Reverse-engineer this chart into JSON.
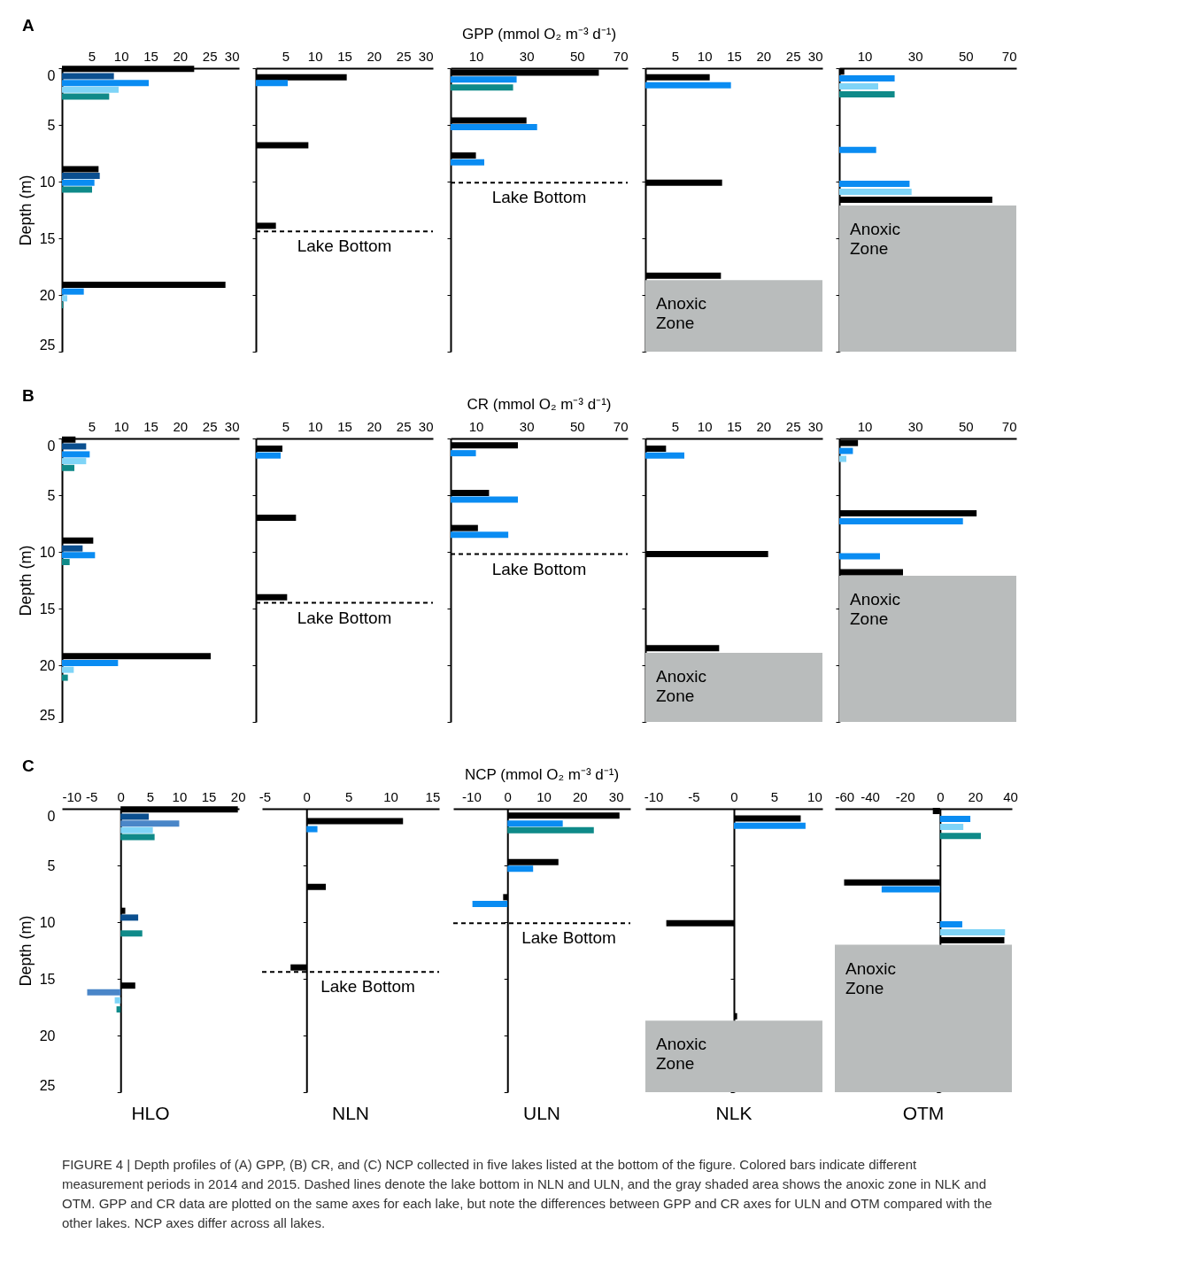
{
  "chart_data": [
    {
      "type": "bar",
      "orientation": "horizontal",
      "ylabel": "Depth (m)",
      "annotations": [
        "A"
      ],
      "xlim": [
        0,
        30
      ],
      "xticks": [
        5,
        10,
        15,
        20,
        25,
        30
      ],
      "ylim": [
        25,
        0
      ],
      "yticks": [
        0,
        5,
        10,
        15,
        20,
        25
      ],
      "series": [
        {
          "color": "#000000",
          "x": [
            0.05,
            8.9,
            19.1
          ],
          "values": [
            22.4,
            6.2,
            27.7
          ]
        },
        {
          "color": "#0b4f8f",
          "x": [
            0.7,
            9.5
          ],
          "values": [
            8.8,
            6.4
          ]
        },
        {
          "color": "#0a8cf2",
          "x": [
            1.3,
            10.1,
            19.7
          ],
          "values": [
            14.7,
            5.5,
            3.7
          ]
        },
        {
          "color": "#7fd4f7",
          "x": [
            1.9,
            20.3
          ],
          "values": [
            9.6,
            0.9
          ]
        },
        {
          "color": "#0f8a89",
          "x": [
            2.5,
            10.7,
            20.9
          ],
          "values": [
            8.0,
            5.1,
            0.2
          ]
        }
      ]
    },
    {
      "type": "bar",
      "orientation": "horizontal",
      "tick_labels": "x",
      "xlim": [
        0,
        30
      ],
      "xticks": [
        5,
        10,
        15,
        20,
        25,
        30
      ],
      "ylim": [
        25,
        0
      ],
      "yticks": [
        0,
        5,
        10,
        15,
        20,
        25
      ],
      "series": [
        {
          "color": "#000000",
          "x": [
            0.8,
            6.8,
            13.9
          ],
          "values": [
            15.4,
            8.9,
            3.4
          ]
        },
        {
          "color": "#0a8cf2",
          "x": [
            1.3
          ],
          "values": [
            5.4
          ]
        }
      ],
      "ref_lines": [
        {
          "axis": "y",
          "value": 14.4,
          "label": "Lake Bottom",
          "line_style": "dashed"
        }
      ]
    },
    {
      "type": "bar",
      "orientation": "horizontal",
      "tick_labels": "x",
      "title": "GPP (mmol O₂ m⁻³ d⁻¹)",
      "xlim": [
        0,
        70
      ],
      "xticks": [
        10,
        30,
        50,
        70
      ],
      "ylim": [
        25,
        0
      ],
      "yticks": [
        0,
        5,
        10,
        15,
        20,
        25
      ],
      "series": [
        {
          "color": "#000000",
          "x": [
            0.4,
            4.6,
            7.7
          ],
          "values": [
            58.6,
            30.0,
            10.0
          ]
        },
        {
          "color": "#0a8cf2",
          "x": [
            1.0,
            5.2,
            8.3
          ],
          "values": [
            26.1,
            34.2,
            13.3
          ]
        },
        {
          "color": "#0f8a89",
          "x": [
            1.7
          ],
          "values": [
            24.7
          ]
        }
      ],
      "ref_lines": [
        {
          "axis": "y",
          "value": 10.1,
          "label": "Lake Bottom",
          "line_style": "dashed"
        }
      ]
    },
    {
      "type": "bar",
      "orientation": "horizontal",
      "tick_labels": "x",
      "xlim": [
        0,
        30
      ],
      "xticks": [
        5,
        10,
        15,
        20,
        25,
        30
      ],
      "ylim": [
        25,
        0
      ],
      "yticks": [
        0,
        5,
        10,
        15,
        20,
        25
      ],
      "series": [
        {
          "color": "#000000",
          "x": [
            0.8,
            10.1,
            18.3
          ],
          "values": [
            10.9,
            13.0,
            12.8
          ]
        },
        {
          "color": "#0a8cf2",
          "x": [
            1.5
          ],
          "values": [
            14.5
          ]
        }
      ],
      "bands": [
        {
          "axis": "y",
          "from": 18.7,
          "to": 25,
          "label": "Anoxic Zone",
          "color": "#b9bcbc"
        }
      ]
    },
    {
      "type": "bar",
      "orientation": "horizontal",
      "tick_labels": "x",
      "xlim": [
        0,
        70
      ],
      "xticks": [
        10,
        30,
        50,
        70
      ],
      "ylim": [
        25,
        0
      ],
      "yticks": [
        0,
        5,
        10,
        15,
        20,
        25
      ],
      "series": [
        {
          "color": "#000000",
          "x": [
            0.3,
            11.6
          ],
          "values": [
            2.0,
            60.5
          ]
        },
        {
          "color": "#0a8cf2",
          "x": [
            0.9,
            7.2,
            10.2
          ],
          "values": [
            21.9,
            14.6,
            27.8
          ]
        },
        {
          "color": "#7fd4f7",
          "x": [
            1.6,
            10.9
          ],
          "values": [
            15.4,
            28.6
          ]
        },
        {
          "color": "#0f8a89",
          "x": [
            2.3
          ],
          "values": [
            21.9
          ]
        }
      ],
      "bands": [
        {
          "axis": "y",
          "from": 12.1,
          "to": 25,
          "label": "Anoxic Zone",
          "color": "#b9bcbc"
        }
      ]
    },
    {
      "type": "bar",
      "orientation": "horizontal",
      "ylabel": "Depth (m)",
      "annotations": [
        "B"
      ],
      "xlim": [
        0,
        30
      ],
      "xticks": [
        5,
        10,
        15,
        20,
        25,
        30
      ],
      "ylim": [
        25,
        0
      ],
      "yticks": [
        0,
        5,
        10,
        15,
        20,
        25
      ],
      "series": [
        {
          "color": "#000000",
          "x": [
            0.1,
            9.0,
            19.2
          ],
          "values": [
            2.3,
            5.3,
            25.2
          ]
        },
        {
          "color": "#0b4f8f",
          "x": [
            0.7,
            9.7
          ],
          "values": [
            4.1,
            3.5
          ]
        },
        {
          "color": "#0a8cf2",
          "x": [
            1.4,
            10.3,
            19.8
          ],
          "values": [
            4.7,
            5.6,
            9.5
          ]
        },
        {
          "color": "#7fd4f7",
          "x": [
            2.0,
            20.4
          ],
          "values": [
            4.1,
            2.0
          ]
        },
        {
          "color": "#0f8a89",
          "x": [
            2.6,
            10.9,
            21.1
          ],
          "values": [
            2.1,
            1.3,
            1.0
          ]
        }
      ]
    },
    {
      "type": "bar",
      "orientation": "horizontal",
      "tick_labels": "x",
      "xlim": [
        0,
        30
      ],
      "xticks": [
        5,
        10,
        15,
        20,
        25,
        30
      ],
      "ylim": [
        25,
        0
      ],
      "yticks": [
        0,
        5,
        10,
        15,
        20,
        25
      ],
      "series": [
        {
          "color": "#000000",
          "x": [
            0.9,
            7.0,
            14.0
          ],
          "values": [
            4.5,
            6.8,
            5.3
          ]
        },
        {
          "color": "#0a8cf2",
          "x": [
            1.5
          ],
          "values": [
            4.2
          ]
        }
      ],
      "ref_lines": [
        {
          "axis": "y",
          "value": 14.5,
          "label": "Lake Bottom",
          "line_style": "dashed"
        }
      ]
    },
    {
      "type": "bar",
      "orientation": "horizontal",
      "tick_labels": "x",
      "title": "CR (mmol O₂ m⁻³ d⁻¹)",
      "xlim": [
        0,
        70
      ],
      "xticks": [
        10,
        30,
        50,
        70
      ],
      "ylim": [
        25,
        0
      ],
      "yticks": [
        0,
        5,
        10,
        15,
        20,
        25
      ],
      "series": [
        {
          "color": "#000000",
          "x": [
            0.6,
            4.8,
            7.9
          ],
          "values": [
            26.6,
            15.2,
            10.8
          ]
        },
        {
          "color": "#0a8cf2",
          "x": [
            1.3,
            5.4,
            8.5
          ],
          "values": [
            10.0,
            26.6,
            22.8
          ]
        }
      ],
      "ref_lines": [
        {
          "axis": "y",
          "value": 10.2,
          "label": "Lake Bottom",
          "line_style": "dashed"
        }
      ]
    },
    {
      "type": "bar",
      "orientation": "horizontal",
      "tick_labels": "x",
      "xlim": [
        0,
        30
      ],
      "xticks": [
        5,
        10,
        15,
        20,
        25,
        30
      ],
      "ylim": [
        25,
        0
      ],
      "yticks": [
        0,
        5,
        10,
        15,
        20,
        25
      ],
      "series": [
        {
          "color": "#000000",
          "x": [
            0.9,
            10.2,
            18.5
          ],
          "values": [
            3.5,
            20.8,
            12.5
          ]
        },
        {
          "color": "#0a8cf2",
          "x": [
            1.5
          ],
          "values": [
            6.6
          ]
        }
      ],
      "bands": [
        {
          "axis": "y",
          "from": 18.9,
          "to": 25,
          "label": "Anoxic Zone",
          "color": "#b9bcbc"
        }
      ]
    },
    {
      "type": "bar",
      "orientation": "horizontal",
      "tick_labels": "x",
      "xlim": [
        0,
        70
      ],
      "xticks": [
        10,
        30,
        50,
        70
      ],
      "ylim": [
        25,
        0
      ],
      "yticks": [
        0,
        5,
        10,
        15,
        20,
        25
      ],
      "series": [
        {
          "color": "#000000",
          "x": [
            0.4,
            6.6,
            11.8
          ],
          "values": [
            7.4,
            54.3,
            25.2
          ]
        },
        {
          "color": "#0a8cf2",
          "x": [
            1.1,
            7.3,
            10.4
          ],
          "values": [
            5.4,
            48.9,
            16.1
          ]
        },
        {
          "color": "#7fd4f7",
          "x": [
            1.8
          ],
          "values": [
            2.8
          ]
        }
      ],
      "bands": [
        {
          "axis": "y",
          "from": 12.1,
          "to": 25,
          "label": "Anoxic Zone",
          "color": "#b9bcbc"
        }
      ]
    },
    {
      "type": "bar",
      "orientation": "horizontal",
      "ylabel": "Depth (m)",
      "xlabel": "HLO",
      "annotations": [
        "C"
      ],
      "xlim": [
        -10,
        20.2
      ],
      "xticks": [
        -10,
        -5,
        0,
        5,
        10,
        15,
        20
      ],
      "ylim": [
        25,
        0
      ],
      "yticks": [
        0,
        5,
        10,
        15,
        20,
        25
      ],
      "series": [
        {
          "color": "#000000",
          "x": [
            0.05,
            9.0,
            15.6
          ],
          "values": [
            20.0,
            0.8,
            2.5
          ]
        },
        {
          "color": "#0b4f8f",
          "x": [
            0.7,
            9.6
          ],
          "values": [
            4.8,
            3.0
          ]
        },
        {
          "color": "#4a86c8",
          "x": [
            1.3,
            16.2
          ],
          "values": [
            10.0,
            -5.7
          ]
        },
        {
          "color": "#7fd4f7",
          "x": [
            1.9,
            16.9
          ],
          "values": [
            5.5,
            -1.0
          ]
        },
        {
          "color": "#0f8a89",
          "x": [
            2.5,
            11.0,
            17.7
          ],
          "values": [
            5.8,
            3.7,
            -0.7
          ]
        }
      ]
    },
    {
      "type": "bar",
      "orientation": "horizontal",
      "tick_labels": "x",
      "xlabel": "NLN",
      "xlim": [
        -5.3,
        15.8
      ],
      "xticks": [
        -5,
        0,
        5,
        10,
        15
      ],
      "ylim": [
        25,
        0
      ],
      "yticks": [
        0,
        5,
        10,
        15,
        20,
        25
      ],
      "series": [
        {
          "color": "#000000",
          "x": [
            1.1,
            6.9,
            14.0
          ],
          "values": [
            11.5,
            2.3,
            -1.9
          ]
        },
        {
          "color": "#0a8cf2",
          "x": [
            1.8
          ],
          "values": [
            1.3
          ]
        }
      ],
      "ref_lines": [
        {
          "axis": "y",
          "value": 14.4,
          "label": "Lake Bottom",
          "line_style": "dashed"
        }
      ]
    },
    {
      "type": "bar",
      "orientation": "horizontal",
      "tick_labels": "x",
      "title": "NCP (mmol O₂ m⁻³ d⁻¹)",
      "xlabel": "ULN",
      "xlim": [
        -15,
        34
      ],
      "xticks": [
        -10,
        0,
        10,
        20,
        30
      ],
      "ylim": [
        25,
        0
      ],
      "yticks": [
        0,
        5,
        10,
        15,
        20,
        25
      ],
      "series": [
        {
          "color": "#000000",
          "x": [
            0.6,
            4.7,
            7.8
          ],
          "values": [
            31.0,
            14.1,
            -1.2
          ]
        },
        {
          "color": "#0a8cf2",
          "x": [
            1.3,
            5.3,
            8.4
          ],
          "values": [
            15.3,
            7.1,
            -9.7
          ]
        },
        {
          "color": "#0f8a89",
          "x": [
            1.9
          ],
          "values": [
            23.9
          ]
        }
      ],
      "ref_lines": [
        {
          "axis": "y",
          "value": 10.1,
          "label": "Lake Bottom",
          "line_style": "dashed"
        }
      ]
    },
    {
      "type": "bar",
      "orientation": "horizontal",
      "tick_labels": "x",
      "xlabel": "NLK",
      "xlim": [
        -11,
        11
      ],
      "xticks": [
        -10,
        -5,
        0,
        5,
        10
      ],
      "ylim": [
        25,
        0
      ],
      "yticks": [
        0,
        5,
        10,
        15,
        20,
        25
      ],
      "series": [
        {
          "color": "#000000",
          "x": [
            0.85,
            10.1,
            18.3
          ],
          "values": [
            8.3,
            -8.4,
            0.4
          ]
        },
        {
          "color": "#0a8cf2",
          "x": [
            1.5
          ],
          "values": [
            8.9
          ]
        }
      ],
      "bands": [
        {
          "axis": "y",
          "from": 18.7,
          "to": 25,
          "label": "Anoxic Zone",
          "color": "#b9bcbc"
        }
      ]
    },
    {
      "type": "bar",
      "orientation": "horizontal",
      "tick_labels": "x",
      "xlabel": "OTM",
      "annotations": [
        "FIGURE 4 | Depth profiles of (A) GPP, (B) CR, and (C) NCP collected in five lakes listed at the bottom of the figure. Colored bars indicate different measurement periods in 2014 and 2015. Dashed lines denote the lake bottom in NLN and ULN, and the gray shaded area shows the anoxic zone in NLK and OTM. GPP and CR data are plotted on the same axes for each lake, but note the differences between GPP and CR axes for ULN and OTM compared with the other lakes. NCP axes differ across all lakes."
      ],
      "xlim": [
        -60,
        41
      ],
      "xticks": [
        -60,
        -40,
        -20,
        0,
        20,
        40
      ],
      "ylim": [
        25,
        0
      ],
      "yticks": [
        0,
        5,
        10,
        15,
        20,
        25
      ],
      "series": [
        {
          "color": "#000000",
          "x": [
            0.2,
            6.5,
            11.6
          ],
          "values": [
            -4.1,
            -54.7,
            36.7
          ]
        },
        {
          "color": "#0a8cf2",
          "x": [
            0.9,
            7.1,
            10.2
          ],
          "values": [
            17.3,
            -33.3,
            12.7
          ]
        },
        {
          "color": "#7fd4f7",
          "x": [
            1.6,
            10.9
          ],
          "values": [
            13.3,
            37.1
          ]
        },
        {
          "color": "#0f8a89",
          "x": [
            2.4
          ],
          "values": [
            23.3
          ]
        }
      ],
      "bands": [
        {
          "axis": "y",
          "from": 12.0,
          "to": 25,
          "label": "Anoxic Zone",
          "color": "#b9bcbc"
        }
      ]
    }
  ]
}
